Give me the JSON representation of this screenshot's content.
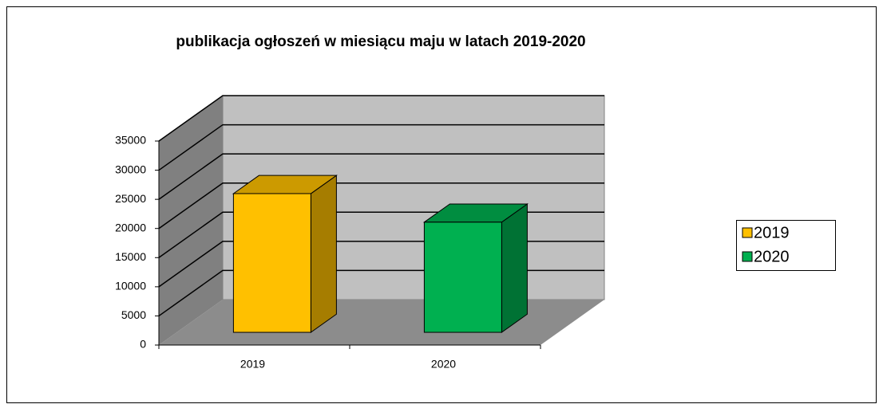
{
  "chart_data": {
    "type": "bar3d",
    "title": "publikacja ogłoszeń w miesiącu maju w latach 2019-2020",
    "categories": [
      "2019",
      "2020"
    ],
    "series": [
      {
        "name": "2019",
        "color": "#ffc000",
        "values": [
          23800,
          null
        ]
      },
      {
        "name": "2020",
        "color": "#00b050",
        "values": [
          null,
          18900
        ]
      }
    ],
    "ylim": [
      0,
      35000
    ],
    "yticks": [
      0,
      5000,
      10000,
      15000,
      20000,
      25000,
      30000,
      35000
    ],
    "grid": true,
    "legend": "right"
  }
}
